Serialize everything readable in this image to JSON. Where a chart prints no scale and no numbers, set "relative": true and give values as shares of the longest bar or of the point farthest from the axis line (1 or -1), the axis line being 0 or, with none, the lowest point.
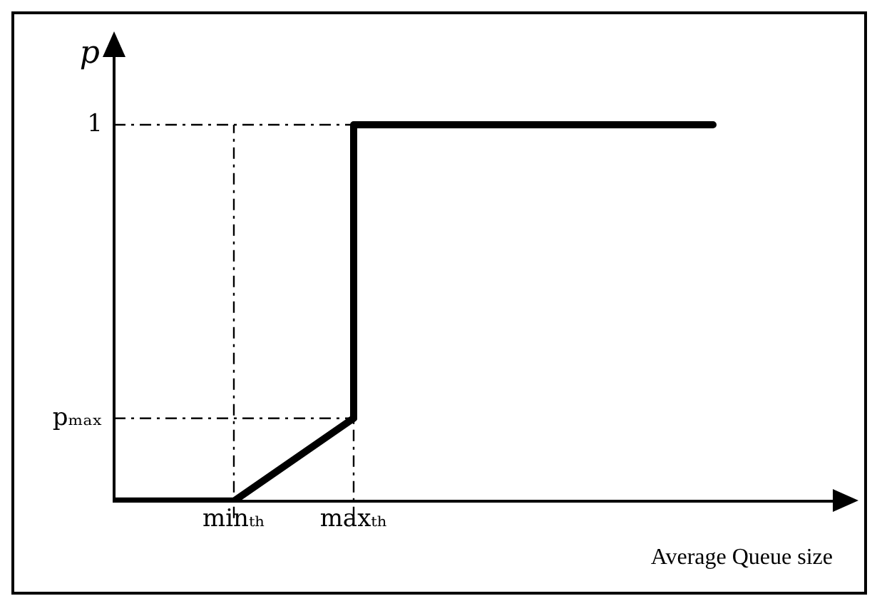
{
  "chart_data": {
    "type": "line",
    "relative": true,
    "ylabel": "p",
    "xlabel": "Average Queue size",
    "categories": [
      null,
      "minₜₕ",
      "maxₜₕ",
      null,
      null,
      null,
      null
    ],
    "series": [
      {
        "color": "#000000",
        "values": [
          0,
          0,
          0.22,
          null,
          null,
          null,
          null
        ]
      },
      {
        "type": "step",
        "color": "#000000",
        "values": [
          null,
          null,
          0.22,
          1,
          1,
          1,
          null
        ]
      }
    ],
    "ref_lines": [
      {
        "axis": "y",
        "value": 1,
        "label": "1",
        "color": "#000000",
        "line_style": "dashed"
      },
      {
        "axis": "y",
        "value": 0.22,
        "label": "pₘₐₓ",
        "color": "#000000",
        "line_style": "dashed"
      },
      {
        "axis": "x",
        "value": "minₜₕ",
        "color": "#000000",
        "line_style": "dashed"
      },
      {
        "axis": "x",
        "value": "maxₜₕ",
        "color": "#000000",
        "line_style": "dashed"
      }
    ],
    "grid": false,
    "legend": false,
    "marker": "none",
    "line_style": "solid"
  }
}
